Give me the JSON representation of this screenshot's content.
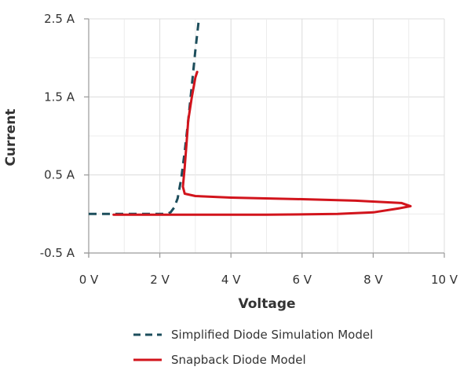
{
  "chart_data": {
    "type": "line",
    "title": "",
    "xlabel": "Voltage",
    "ylabel": "Current",
    "xlim": [
      0,
      10
    ],
    "ylim": [
      -0.5,
      2.5
    ],
    "x_ticks": [
      0,
      2,
      4,
      6,
      8,
      10
    ],
    "x_tick_labels": [
      "0 V",
      "2 V",
      "4 V",
      "6 V",
      "8 V",
      "10 V"
    ],
    "y_ticks": [
      -0.5,
      0.5,
      1.5,
      2.5
    ],
    "y_tick_labels": [
      "-0.5 A",
      "0.5 A",
      "1.5 A",
      "2.5 A"
    ],
    "grid": true,
    "legend_position": "bottom",
    "series": [
      {
        "name": "Simplified Diode Simulation Model",
        "color": "#1d4e5c",
        "dash": "dashed",
        "x": [
          0,
          1.5,
          2.2,
          2.3,
          2.4,
          2.5,
          2.6,
          2.7,
          2.8,
          2.9,
          3.0,
          3.1
        ],
        "y": [
          0.0,
          0.0,
          0.0,
          0.02,
          0.08,
          0.2,
          0.45,
          0.8,
          1.2,
          1.65,
          2.1,
          2.5
        ]
      },
      {
        "name": "Snapback Diode Model",
        "color": "#d2141c",
        "dash": "solid",
        "x": [
          0.7,
          1.5,
          3.0,
          5.0,
          7.0,
          8.0,
          8.7,
          9.05,
          8.8,
          7.5,
          6.0,
          4.0,
          3.0,
          2.7,
          2.65,
          2.7,
          2.75,
          2.8,
          2.9,
          3.0,
          3.05
        ],
        "y": [
          -0.01,
          -0.01,
          -0.01,
          -0.01,
          0.0,
          0.02,
          0.07,
          0.1,
          0.14,
          0.17,
          0.19,
          0.21,
          0.23,
          0.26,
          0.35,
          0.6,
          0.9,
          1.2,
          1.5,
          1.75,
          1.82
        ]
      }
    ]
  }
}
